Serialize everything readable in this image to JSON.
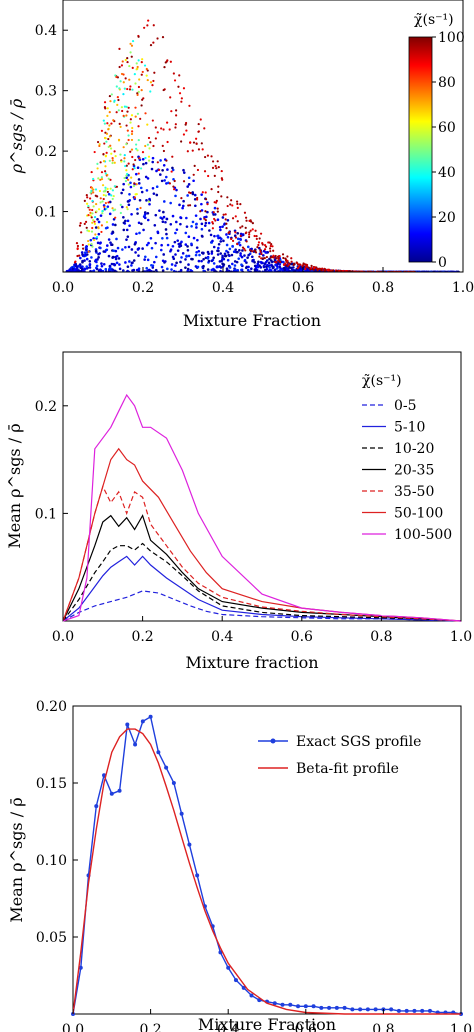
{
  "chart_data": [
    {
      "type": "scatter",
      "xlabel": "Mixture Fraction",
      "ylabel": "ρ^sgs / ρ̄",
      "xlim": [
        0,
        1
      ],
      "ylim": [
        0,
        0.45
      ],
      "x_ticks": [
        "0.0",
        "0.2",
        "0.4",
        "0.6",
        "0.8",
        "1.0"
      ],
      "y_ticks": [
        "0.1",
        "0.2",
        "0.3",
        "0.4"
      ],
      "colorbar": {
        "label": "χ̃(s⁻¹)",
        "range": [
          0,
          100
        ],
        "ticks": [
          "100",
          "80",
          "60",
          "40",
          "20",
          "0"
        ],
        "colormap": "jet"
      },
      "envelope_peak": {
        "x": 0.2,
        "y": 0.42
      },
      "grid": false
    },
    {
      "type": "line",
      "xlabel": "Mixture fraction",
      "ylabel": "Mean ρ^sgs / ρ̄",
      "xlim": [
        0,
        1
      ],
      "ylim": [
        0,
        0.25
      ],
      "x_ticks": [
        "0.0",
        "0.2",
        "0.4",
        "0.6",
        "0.8",
        "1.0"
      ],
      "y_ticks": [
        "0.1",
        "0.2"
      ],
      "legend_title": "χ̃(s⁻¹)",
      "legend_position": "top-right",
      "grid": false,
      "series": [
        {
          "name": "0-5",
          "color": "#2222dd",
          "dash": "dashed",
          "x": [
            0.0,
            0.04,
            0.08,
            0.12,
            0.16,
            0.2,
            0.24,
            0.28,
            0.32,
            0.36,
            0.4,
            0.5,
            0.6,
            0.7,
            0.8,
            0.9,
            1.0
          ],
          "y": [
            0.0,
            0.008,
            0.014,
            0.018,
            0.022,
            0.028,
            0.026,
            0.02,
            0.014,
            0.009,
            0.006,
            0.004,
            0.003,
            0.002,
            0.002,
            0.001,
            0.0
          ]
        },
        {
          "name": "5-10",
          "color": "#2222dd",
          "dash": "solid",
          "x": [
            0.0,
            0.04,
            0.08,
            0.1,
            0.12,
            0.14,
            0.16,
            0.18,
            0.2,
            0.22,
            0.26,
            0.3,
            0.34,
            0.4,
            0.5,
            0.6,
            0.7,
            0.8,
            0.9,
            1.0
          ],
          "y": [
            0.0,
            0.012,
            0.032,
            0.042,
            0.05,
            0.055,
            0.06,
            0.052,
            0.06,
            0.052,
            0.04,
            0.03,
            0.02,
            0.01,
            0.006,
            0.004,
            0.003,
            0.002,
            0.001,
            0.0
          ]
        },
        {
          "name": "10-20",
          "color": "#000000",
          "dash": "dashed",
          "x": [
            0.0,
            0.04,
            0.08,
            0.1,
            0.12,
            0.14,
            0.16,
            0.18,
            0.2,
            0.22,
            0.26,
            0.3,
            0.34,
            0.4,
            0.5,
            0.6,
            0.7,
            0.8,
            0.9,
            1.0
          ],
          "y": [
            0.0,
            0.02,
            0.045,
            0.055,
            0.066,
            0.07,
            0.07,
            0.066,
            0.072,
            0.065,
            0.055,
            0.042,
            0.028,
            0.014,
            0.008,
            0.005,
            0.004,
            0.003,
            0.002,
            0.0
          ]
        },
        {
          "name": "20-35",
          "color": "#000000",
          "dash": "solid",
          "x": [
            0.0,
            0.04,
            0.08,
            0.1,
            0.12,
            0.14,
            0.16,
            0.18,
            0.2,
            0.22,
            0.26,
            0.3,
            0.34,
            0.4,
            0.5,
            0.6,
            0.7,
            0.8,
            0.9,
            1.0
          ],
          "y": [
            0.0,
            0.03,
            0.07,
            0.092,
            0.098,
            0.088,
            0.096,
            0.085,
            0.098,
            0.075,
            0.062,
            0.045,
            0.03,
            0.018,
            0.012,
            0.008,
            0.006,
            0.004,
            0.002,
            0.0
          ]
        },
        {
          "name": "35-50",
          "color": "#dd2222",
          "dash": "dashed",
          "x": [
            0.0,
            0.04,
            0.08,
            0.1,
            0.12,
            0.14,
            0.16,
            0.18,
            0.2,
            0.22,
            0.26,
            0.3,
            0.34,
            0.4,
            0.5,
            0.6,
            0.7,
            0.8,
            0.9,
            1.0
          ],
          "y": [
            0.0,
            0.04,
            0.1,
            0.125,
            0.11,
            0.12,
            0.1,
            0.12,
            0.115,
            0.09,
            0.07,
            0.05,
            0.035,
            0.022,
            0.013,
            0.009,
            0.006,
            0.004,
            0.002,
            0.0
          ]
        },
        {
          "name": "50-100",
          "color": "#dd2222",
          "dash": "solid",
          "x": [
            0.0,
            0.04,
            0.08,
            0.12,
            0.14,
            0.16,
            0.18,
            0.2,
            0.24,
            0.28,
            0.32,
            0.36,
            0.4,
            0.5,
            0.6,
            0.7,
            0.8,
            0.9,
            1.0
          ],
          "y": [
            0.0,
            0.04,
            0.1,
            0.15,
            0.16,
            0.15,
            0.145,
            0.13,
            0.115,
            0.09,
            0.065,
            0.045,
            0.03,
            0.018,
            0.012,
            0.008,
            0.005,
            0.003,
            0.0
          ]
        },
        {
          "name": "100-500",
          "color": "#dd22dd",
          "dash": "solid",
          "x": [
            0.0,
            0.04,
            0.06,
            0.08,
            0.12,
            0.14,
            0.16,
            0.18,
            0.2,
            0.22,
            0.26,
            0.3,
            0.34,
            0.4,
            0.5,
            0.6,
            0.7,
            0.8,
            0.9,
            1.0
          ],
          "y": [
            0.0,
            0.005,
            0.04,
            0.16,
            0.18,
            0.195,
            0.21,
            0.2,
            0.18,
            0.18,
            0.17,
            0.14,
            0.1,
            0.06,
            0.025,
            0.012,
            0.008,
            0.005,
            0.003,
            0.0
          ]
        }
      ]
    },
    {
      "type": "line",
      "xlabel": "Mixture Fraction",
      "ylabel": "Mean ρ^sgs / ρ̄",
      "xlim": [
        0,
        1
      ],
      "ylim": [
        0,
        0.2
      ],
      "x_ticks": [
        "0.0",
        "0.2",
        "0.4",
        "0.6",
        "0.8",
        "1.0"
      ],
      "y_ticks": [
        "0.05",
        "0.10",
        "0.15",
        "0.20"
      ],
      "legend_position": "top-right",
      "grid": false,
      "series": [
        {
          "name": "Exact SGS profile",
          "color": "#1f3fdd",
          "marker": "dot",
          "x": [
            0.0,
            0.02,
            0.04,
            0.06,
            0.08,
            0.1,
            0.12,
            0.14,
            0.16,
            0.18,
            0.2,
            0.22,
            0.24,
            0.26,
            0.28,
            0.3,
            0.32,
            0.34,
            0.36,
            0.38,
            0.4,
            0.42,
            0.44,
            0.46,
            0.48,
            0.5,
            0.52,
            0.54,
            0.56,
            0.58,
            0.6,
            0.62,
            0.64,
            0.66,
            0.68,
            0.7,
            0.72,
            0.74,
            0.76,
            0.78,
            0.8,
            0.82,
            0.84,
            0.86,
            0.88,
            0.9,
            0.92,
            0.94,
            0.96,
            0.98,
            1.0
          ],
          "y": [
            0.0,
            0.03,
            0.09,
            0.135,
            0.155,
            0.143,
            0.145,
            0.188,
            0.175,
            0.19,
            0.193,
            0.17,
            0.16,
            0.15,
            0.13,
            0.11,
            0.09,
            0.07,
            0.057,
            0.04,
            0.03,
            0.022,
            0.017,
            0.012,
            0.009,
            0.008,
            0.007,
            0.006,
            0.006,
            0.005,
            0.005,
            0.005,
            0.004,
            0.004,
            0.004,
            0.004,
            0.003,
            0.003,
            0.003,
            0.003,
            0.003,
            0.003,
            0.002,
            0.002,
            0.002,
            0.002,
            0.002,
            0.001,
            0.001,
            0.001,
            0.0
          ]
        },
        {
          "name": "Beta-fit profile",
          "color": "#dd2222",
          "x": [
            0.0,
            0.02,
            0.04,
            0.06,
            0.08,
            0.1,
            0.12,
            0.14,
            0.16,
            0.18,
            0.2,
            0.22,
            0.24,
            0.26,
            0.28,
            0.3,
            0.32,
            0.34,
            0.36,
            0.38,
            0.4,
            0.45,
            0.5,
            0.55,
            0.6,
            0.7,
            0.8,
            0.9,
            1.0
          ],
          "y": [
            0.0,
            0.04,
            0.085,
            0.12,
            0.15,
            0.17,
            0.18,
            0.185,
            0.185,
            0.182,
            0.175,
            0.163,
            0.148,
            0.132,
            0.115,
            0.098,
            0.082,
            0.067,
            0.054,
            0.043,
            0.033,
            0.016,
            0.007,
            0.003,
            0.001,
            0.0,
            0.0,
            0.0,
            0.0
          ]
        }
      ]
    }
  ]
}
